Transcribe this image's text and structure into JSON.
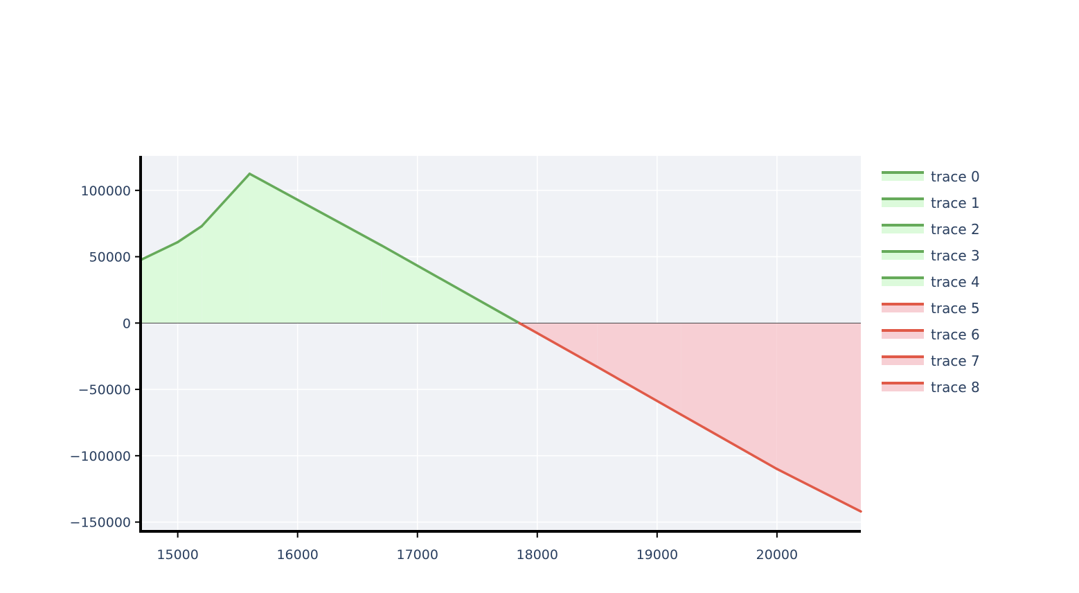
{
  "chart_data": {
    "type": "area",
    "title": "",
    "xlabel": "",
    "ylabel": "",
    "xlim": [
      14690,
      20700
    ],
    "ylim": [
      -157000,
      126000
    ],
    "grid": true,
    "legend_position": "right",
    "x_ticks": [
      15000,
      16000,
      17000,
      18000,
      19000,
      20000
    ],
    "y_ticks": [
      100000,
      50000,
      0,
      -50000,
      -100000,
      -150000
    ],
    "x_tick_labels": [
      "15000",
      "16000",
      "17000",
      "18000",
      "19000",
      "20000"
    ],
    "y_tick_labels": [
      "100000",
      "50000",
      "0",
      "−50000",
      "−100000",
      "−150000"
    ],
    "colors": {
      "profit_line": "#66aa5a",
      "profit_fill": "#dcfadb",
      "loss_line": "#e05a48",
      "loss_fill": "#f7cfd4",
      "plot_bg": "#f0f2f6",
      "grid": "#ffffff",
      "axis": "#000000"
    },
    "series": [
      {
        "name": "trace 0",
        "fill": "tozeroy",
        "group": "profit",
        "x": [
          14690,
          15000
        ],
        "y": [
          47500,
          61000
        ]
      },
      {
        "name": "trace 1",
        "fill": "tozeroy",
        "group": "profit",
        "x": [
          15000,
          15200
        ],
        "y": [
          61000,
          73000
        ]
      },
      {
        "name": "trace 2",
        "fill": "tozeroy",
        "group": "profit",
        "x": [
          15200,
          15600
        ],
        "y": [
          73000,
          112500
        ]
      },
      {
        "name": "trace 3",
        "fill": "tozeroy",
        "group": "profit",
        "x": [
          15600,
          16700
        ],
        "y": [
          112500,
          58500
        ]
      },
      {
        "name": "trace 4",
        "fill": "tozeroy",
        "group": "profit",
        "x": [
          16700,
          17850
        ],
        "y": [
          58500,
          0
        ]
      },
      {
        "name": "trace 5",
        "fill": "tozeroy",
        "group": "loss",
        "x": [
          17850,
          18500
        ],
        "y": [
          0,
          -33000
        ]
      },
      {
        "name": "trace 6",
        "fill": "tozeroy",
        "group": "loss",
        "x": [
          18500,
          19200
        ],
        "y": [
          -33000,
          -69000
        ]
      },
      {
        "name": "trace 7",
        "fill": "tozeroy",
        "group": "loss",
        "x": [
          19200,
          20000
        ],
        "y": [
          -69000,
          -110000
        ]
      },
      {
        "name": "trace 8",
        "fill": "tozeroy",
        "group": "loss",
        "x": [
          20000,
          20700
        ],
        "y": [
          -110000,
          -142000
        ]
      }
    ]
  }
}
